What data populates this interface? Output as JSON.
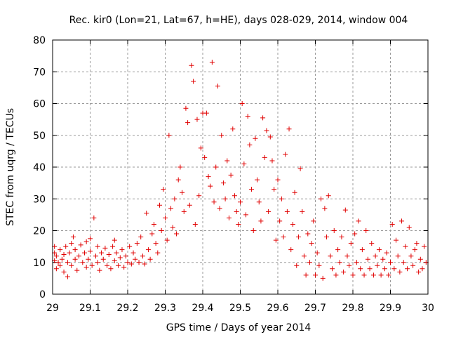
{
  "chart_data": {
    "type": "scatter",
    "title": "Rec. kir0 (Lon=21, Lat=67, h=HE), days 028-029, 2014, window 004",
    "xlabel": "GPS time / Days of year 2014",
    "ylabel": "STEC from uqrg / TECUs",
    "xlim": [
      29,
      30
    ],
    "ylim": [
      0,
      80
    ],
    "xticks": [
      29,
      29.1,
      29.2,
      29.3,
      29.4,
      29.5,
      29.6,
      29.7,
      29.8,
      29.9,
      30
    ],
    "xtick_labels": [
      "29",
      "29.1",
      "29.2",
      "29.3",
      "29.4",
      "29.5",
      "29.6",
      "29.7",
      "29.8",
      "29.9",
      "30"
    ],
    "yticks": [
      0,
      10,
      20,
      30,
      40,
      50,
      60,
      70,
      80
    ],
    "ytick_labels": [
      "0",
      "10",
      "20",
      "30",
      "40",
      "50",
      "60",
      "70",
      "80"
    ],
    "grid": true,
    "marker": "plus",
    "color": "#e00000",
    "series": [
      {
        "name": "STEC",
        "points": [
          [
            29.005,
            10.5
          ],
          [
            29.005,
            13
          ],
          [
            29.005,
            15
          ],
          [
            29.01,
            8
          ],
          [
            29.01,
            12
          ],
          [
            29.015,
            10
          ],
          [
            29.02,
            14
          ],
          [
            29.02,
            9
          ],
          [
            29.025,
            11
          ],
          [
            29.03,
            12.5
          ],
          [
            29.03,
            7
          ],
          [
            29.035,
            15
          ],
          [
            29.04,
            10
          ],
          [
            29.04,
            5.5
          ],
          [
            29.045,
            13
          ],
          [
            29.05,
            16
          ],
          [
            29.05,
            9
          ],
          [
            29.055,
            18
          ],
          [
            29.06,
            11
          ],
          [
            29.06,
            14
          ],
          [
            29.065,
            7.5
          ],
          [
            29.07,
            12
          ],
          [
            29.075,
            15.5
          ],
          [
            29.08,
            10
          ],
          [
            29.085,
            13
          ],
          [
            29.09,
            16.5
          ],
          [
            29.09,
            8.5
          ],
          [
            29.095,
            11
          ],
          [
            29.1,
            17.5
          ],
          [
            29.1,
            13.5
          ],
          [
            29.105,
            9
          ],
          [
            29.11,
            24
          ],
          [
            29.115,
            12
          ],
          [
            29.12,
            15
          ],
          [
            29.12,
            10
          ],
          [
            29.125,
            7.5
          ],
          [
            29.13,
            13
          ],
          [
            29.135,
            11
          ],
          [
            29.14,
            14.5
          ],
          [
            29.145,
            9
          ],
          [
            29.15,
            12.5
          ],
          [
            29.155,
            8
          ],
          [
            29.16,
            15
          ],
          [
            29.165,
            17
          ],
          [
            29.165,
            10.5
          ],
          [
            29.17,
            13
          ],
          [
            29.175,
            9
          ],
          [
            29.18,
            11.5
          ],
          [
            29.185,
            14
          ],
          [
            29.19,
            8.5
          ],
          [
            29.195,
            12
          ],
          [
            29.2,
            10
          ],
          [
            29.205,
            15
          ],
          [
            29.21,
            9.5
          ],
          [
            29.215,
            13
          ],
          [
            29.22,
            11
          ],
          [
            29.225,
            16
          ],
          [
            29.23,
            10
          ],
          [
            29.235,
            18
          ],
          [
            29.24,
            12
          ],
          [
            29.245,
            9.5
          ],
          [
            29.25,
            25.5
          ],
          [
            29.255,
            14
          ],
          [
            29.26,
            11
          ],
          [
            29.265,
            19
          ],
          [
            29.27,
            22
          ],
          [
            29.275,
            16
          ],
          [
            29.28,
            13
          ],
          [
            29.285,
            28
          ],
          [
            29.29,
            20
          ],
          [
            29.295,
            33
          ],
          [
            29.3,
            24
          ],
          [
            29.305,
            17
          ],
          [
            29.31,
            50
          ],
          [
            29.315,
            27
          ],
          [
            29.32,
            21
          ],
          [
            29.325,
            30
          ],
          [
            29.33,
            19
          ],
          [
            29.335,
            36
          ],
          [
            29.34,
            40
          ],
          [
            29.345,
            32
          ],
          [
            29.35,
            26
          ],
          [
            29.355,
            58.5
          ],
          [
            29.36,
            54
          ],
          [
            29.365,
            28
          ],
          [
            29.37,
            72
          ],
          [
            29.375,
            67
          ],
          [
            29.38,
            22
          ],
          [
            29.385,
            55
          ],
          [
            29.39,
            31
          ],
          [
            29.395,
            46
          ],
          [
            29.4,
            57
          ],
          [
            29.405,
            43
          ],
          [
            29.41,
            57
          ],
          [
            29.415,
            37
          ],
          [
            29.42,
            34
          ],
          [
            29.425,
            73
          ],
          [
            29.43,
            29
          ],
          [
            29.435,
            40
          ],
          [
            29.44,
            65.5
          ],
          [
            29.445,
            27
          ],
          [
            29.45,
            50
          ],
          [
            29.455,
            35
          ],
          [
            29.46,
            30
          ],
          [
            29.465,
            42
          ],
          [
            29.47,
            24
          ],
          [
            29.475,
            37.5
          ],
          [
            29.48,
            52
          ],
          [
            29.485,
            31
          ],
          [
            29.49,
            26
          ],
          [
            29.495,
            22
          ],
          [
            29.5,
            29
          ],
          [
            29.505,
            60
          ],
          [
            29.51,
            41
          ],
          [
            29.515,
            25
          ],
          [
            29.52,
            56
          ],
          [
            29.525,
            47
          ],
          [
            29.53,
            33
          ],
          [
            29.535,
            20
          ],
          [
            29.54,
            49
          ],
          [
            29.545,
            36
          ],
          [
            29.55,
            29
          ],
          [
            29.555,
            23
          ],
          [
            29.56,
            55.5
          ],
          [
            29.565,
            43
          ],
          [
            29.57,
            51.5
          ],
          [
            29.575,
            26
          ],
          [
            29.58,
            49.5
          ],
          [
            29.585,
            42
          ],
          [
            29.59,
            33
          ],
          [
            29.595,
            17
          ],
          [
            29.6,
            36
          ],
          [
            29.605,
            23
          ],
          [
            29.61,
            30
          ],
          [
            29.615,
            18
          ],
          [
            29.62,
            44
          ],
          [
            29.625,
            26
          ],
          [
            29.63,
            52
          ],
          [
            29.635,
            14
          ],
          [
            29.64,
            22
          ],
          [
            29.645,
            32
          ],
          [
            29.65,
            9
          ],
          [
            29.655,
            18
          ],
          [
            29.66,
            39.5
          ],
          [
            29.665,
            26
          ],
          [
            29.67,
            12
          ],
          [
            29.675,
            6
          ],
          [
            29.68,
            19
          ],
          [
            29.685,
            10
          ],
          [
            29.69,
            16
          ],
          [
            29.695,
            23
          ],
          [
            29.7,
            6
          ],
          [
            29.705,
            13
          ],
          [
            29.71,
            9
          ],
          [
            29.715,
            30
          ],
          [
            29.72,
            5
          ],
          [
            29.725,
            27
          ],
          [
            29.73,
            18
          ],
          [
            29.735,
            31
          ],
          [
            29.74,
            12
          ],
          [
            29.745,
            8
          ],
          [
            29.75,
            20
          ],
          [
            29.755,
            6
          ],
          [
            29.76,
            14
          ],
          [
            29.765,
            10
          ],
          [
            29.77,
            18
          ],
          [
            29.775,
            7
          ],
          [
            29.78,
            26.5
          ],
          [
            29.785,
            12
          ],
          [
            29.79,
            9
          ],
          [
            29.795,
            16
          ],
          [
            29.8,
            6
          ],
          [
            29.805,
            19
          ],
          [
            29.81,
            10
          ],
          [
            29.815,
            23
          ],
          [
            29.82,
            8
          ],
          [
            29.825,
            14
          ],
          [
            29.83,
            6
          ],
          [
            29.835,
            20
          ],
          [
            29.84,
            11
          ],
          [
            29.845,
            8
          ],
          [
            29.85,
            16
          ],
          [
            29.855,
            6
          ],
          [
            29.86,
            12
          ],
          [
            29.865,
            9
          ],
          [
            29.87,
            14
          ],
          [
            29.875,
            6
          ],
          [
            29.88,
            11
          ],
          [
            29.885,
            8
          ],
          [
            29.89,
            13
          ],
          [
            29.895,
            6
          ],
          [
            29.9,
            10
          ],
          [
            29.905,
            22
          ],
          [
            29.91,
            8
          ],
          [
            29.915,
            17
          ],
          [
            29.92,
            12
          ],
          [
            29.925,
            7
          ],
          [
            29.93,
            23
          ],
          [
            29.935,
            10
          ],
          [
            29.94,
            15
          ],
          [
            29.945,
            8
          ],
          [
            29.95,
            21
          ],
          [
            29.955,
            12
          ],
          [
            29.96,
            9
          ],
          [
            29.965,
            14
          ],
          [
            29.97,
            16
          ],
          [
            29.975,
            7
          ],
          [
            29.98,
            11
          ],
          [
            29.985,
            8
          ],
          [
            29.99,
            15
          ],
          [
            29.995,
            10
          ]
        ]
      }
    ]
  }
}
